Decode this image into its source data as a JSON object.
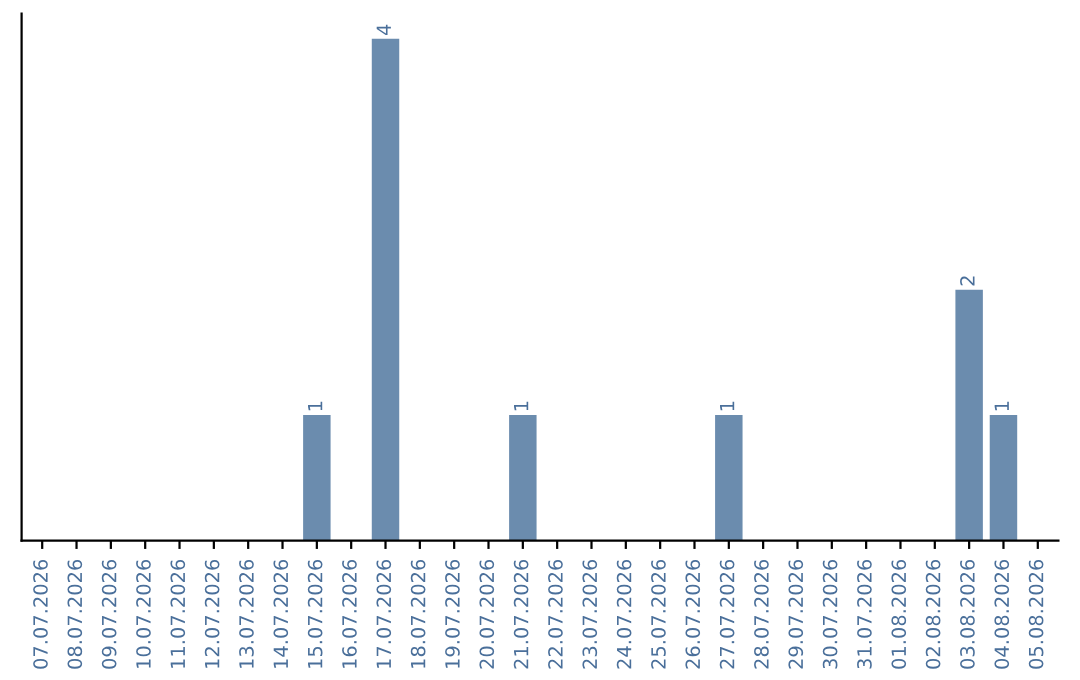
{
  "chart_data": {
    "type": "bar",
    "categories": [
      "07.07.2026",
      "08.07.2026",
      "09.07.2026",
      "10.07.2026",
      "11.07.2026",
      "12.07.2026",
      "13.07.2026",
      "14.07.2026",
      "15.07.2026",
      "16.07.2026",
      "17.07.2026",
      "18.07.2026",
      "19.07.2026",
      "20.07.2026",
      "21.07.2026",
      "22.07.2026",
      "23.07.2026",
      "24.07.2026",
      "25.07.2026",
      "26.07.2026",
      "27.07.2026",
      "28.07.2026",
      "29.07.2026",
      "30.07.2026",
      "31.07.2026",
      "01.08.2026",
      "02.08.2026",
      "03.08.2026",
      "04.08.2026",
      "05.08.2026"
    ],
    "values": [
      0,
      0,
      0,
      0,
      0,
      0,
      0,
      0,
      1,
      0,
      4,
      0,
      0,
      0,
      1,
      0,
      0,
      0,
      0,
      0,
      1,
      0,
      0,
      0,
      0,
      0,
      0,
      2,
      1,
      0
    ],
    "value_labels": [
      null,
      null,
      null,
      null,
      null,
      null,
      null,
      null,
      "1",
      null,
      "4",
      null,
      null,
      null,
      "1",
      null,
      null,
      null,
      null,
      null,
      "1",
      null,
      null,
      null,
      null,
      null,
      null,
      "2",
      "1",
      null
    ],
    "color": "#6b8cae",
    "grid": false,
    "legend": false
  }
}
